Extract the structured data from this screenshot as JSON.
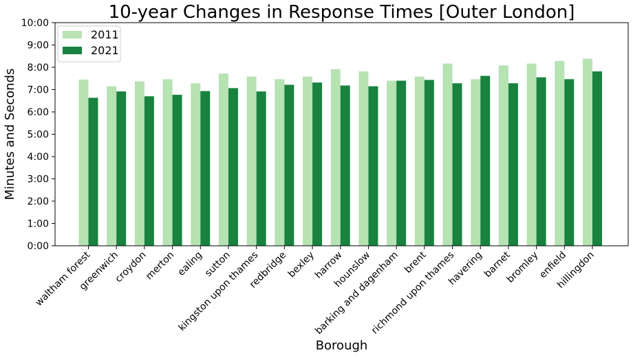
{
  "chart_data": {
    "type": "bar",
    "title": "10-year Changes in Response Times [Outer London]",
    "xlabel": "Borough",
    "ylabel": "Minutes and Seconds",
    "categories": [
      "waltham forest",
      "greenwich",
      "croydon",
      "merton",
      "ealing",
      "sutton",
      "kingston upon thames",
      "redbridge",
      "bexley",
      "harrow",
      "hounslow",
      "barking and dagenham",
      "brent",
      "richmond upon thames",
      "havering",
      "barnet",
      "bromley",
      "enfield",
      "hillingdon"
    ],
    "series": [
      {
        "name": "2011",
        "color": "#b7e2b2",
        "values": [
          "7:27",
          "7:09",
          "7:22",
          "7:28",
          "7:17",
          "7:43",
          "7:35",
          "7:28",
          "7:35",
          "7:55",
          "7:49",
          "7:24",
          "7:35",
          "8:10",
          "7:28",
          "8:05",
          "8:10",
          "8:17",
          "8:23"
        ]
      },
      {
        "name": "2021",
        "color": "#19823f",
        "values": [
          "6:38",
          "6:55",
          "6:42",
          "6:46",
          "6:56",
          "7:04",
          "6:55",
          "7:13",
          "7:19",
          "7:11",
          "7:09",
          "7:24",
          "7:26",
          "7:17",
          "7:37",
          "7:17",
          "7:33",
          "7:28",
          "7:49"
        ]
      }
    ],
    "ylim": [
      "0:00",
      "10:00"
    ],
    "yticks": [
      "0:00",
      "1:00",
      "2:00",
      "3:00",
      "4:00",
      "5:00",
      "6:00",
      "7:00",
      "8:00",
      "9:00",
      "10:00"
    ],
    "legend_position": "top-left",
    "grid": false
  }
}
